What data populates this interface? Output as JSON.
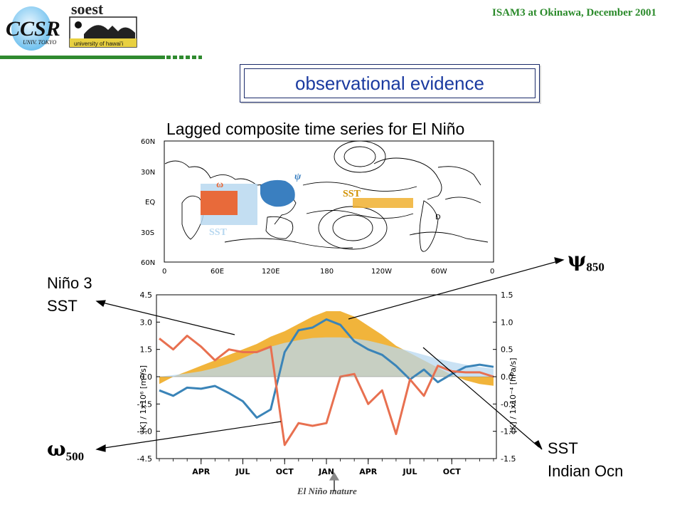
{
  "header": {
    "ccsr_logo": "CCSR",
    "ccsr_sub": "UNIV. TOKYO",
    "soest_logo": "soest",
    "soest_sub": "university of hawai'i",
    "conference": "ISAM3 at Okinawa, December 2001"
  },
  "slide_title": "observational evidence",
  "map": {
    "title": "Lagged composite time series for El Niño",
    "lat_ticks": [
      "60N",
      "30N",
      "EQ",
      "30S",
      "60N"
    ],
    "lon_ticks": [
      "0",
      "60E",
      "120E",
      "180",
      "120W",
      "60W",
      "0"
    ],
    "labels": {
      "omega": "ω",
      "psi": "ψ",
      "sst": "SST",
      "sst_io": "SST",
      "d": "D"
    },
    "colors": {
      "omega_box": "#e86a3a",
      "sst_indian": "#b8d8f0",
      "psi_box": "#3a7fc0",
      "sst_nino3": "#f0b030"
    }
  },
  "annotations": {
    "nino3_line1": "Niño 3",
    "nino3_line2": "SST",
    "psi": "ψ",
    "psi_sub": "850",
    "omega": "ω",
    "omega_sub": "500",
    "sst_io_line1": "SST",
    "sst_io_line2": "Indian Ocn",
    "el_nino_mature": "El Niño mature"
  },
  "chart_data": {
    "type": "line",
    "n_points": 25,
    "x_tick_labels": [
      "APR",
      "JUL",
      "OCT",
      "JAN",
      "APR",
      "JUL",
      "OCT"
    ],
    "x_tick_index": [
      3,
      6,
      9,
      12,
      15,
      18,
      21
    ],
    "left_axis": {
      "label": "[K] / 1x10⁶ [m²/s]",
      "ticks": [
        "4.5",
        "3.0",
        "1.5",
        "0.0",
        "-1.5",
        "-3.0",
        "-4.5"
      ],
      "ylim": [
        -4.5,
        4.5
      ]
    },
    "right_axis": {
      "label": "[K] / 1x10⁻⁴ [hPa/s]",
      "ticks": [
        "1.5",
        "1.0",
        "0.5",
        "0.0",
        "-0.5",
        "-1.0",
        "-1.5"
      ],
      "ylim": [
        -1.5,
        1.5
      ]
    },
    "series": [
      {
        "color": "#f0b030",
        "style": "area",
        "axis": "left",
        "values": [
          -0.4,
          0.0,
          0.3,
          0.6,
          0.9,
          1.2,
          1.5,
          1.8,
          2.2,
          2.5,
          2.9,
          3.3,
          3.6,
          3.6,
          3.3,
          2.8,
          2.3,
          1.7,
          1.3,
          0.9,
          0.5,
          0.1,
          -0.2,
          -0.4,
          -0.5
        ]
      },
      {
        "color": "#b8d8f0",
        "style": "area",
        "axis": "right",
        "values": [
          0.0,
          0.03,
          0.06,
          0.1,
          0.16,
          0.24,
          0.34,
          0.45,
          0.55,
          0.62,
          0.67,
          0.71,
          0.72,
          0.72,
          0.7,
          0.66,
          0.6,
          0.53,
          0.47,
          0.4,
          0.33,
          0.27,
          0.22,
          0.18,
          0.15
        ]
      },
      {
        "color": "#3a84b8",
        "style": "line",
        "axis": "right",
        "values": [
          -0.25,
          -0.35,
          -0.2,
          -0.22,
          -0.17,
          -0.3,
          -0.45,
          -0.75,
          -0.6,
          0.45,
          0.85,
          0.9,
          1.05,
          0.95,
          0.65,
          0.5,
          0.4,
          0.2,
          -0.05,
          0.13,
          -0.1,
          0.05,
          0.18,
          0.22,
          0.18
        ]
      },
      {
        "color": "#e87050",
        "style": "line",
        "axis": "right",
        "values": [
          0.7,
          0.5,
          0.75,
          0.55,
          0.3,
          0.5,
          0.45,
          0.45,
          0.55,
          -1.25,
          -0.85,
          -0.9,
          -0.85,
          0.0,
          0.05,
          -0.5,
          -0.25,
          -1.05,
          -0.05,
          -0.35,
          0.2,
          0.1,
          0.08,
          0.08,
          0.0
        ]
      }
    ]
  }
}
